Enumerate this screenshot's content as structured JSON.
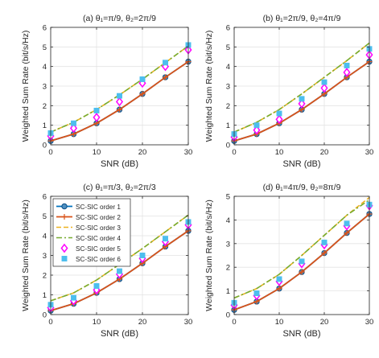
{
  "figure": {
    "legend_location": "upper-left of panel (c)",
    "legend_panel_index": 2
  },
  "series_styles": [
    {
      "name": "SC-SIC order 1",
      "color": "#0072BD",
      "line": "solid",
      "marker": "circle"
    },
    {
      "name": "SC-SIC order 2",
      "color": "#D95319",
      "line": "solid",
      "marker": "plus"
    },
    {
      "name": "SC-SIC order 3",
      "color": "#EDB120",
      "line": "dashed",
      "marker": "none"
    },
    {
      "name": "SC-SIC order 4",
      "color": "#77AC30",
      "line": "dashdot",
      "marker": "none"
    },
    {
      "name": "SC-SIC order 5",
      "color": "#FF00FF",
      "line": "none",
      "marker": "diamond"
    },
    {
      "name": "SC-SIC order 6",
      "color": "#4DBEEE",
      "line": "none",
      "marker": "square"
    }
  ],
  "chart_data": [
    {
      "type": "line",
      "title": "(a) θ₁=π/9, θ₂=2π/9",
      "xlabel": "SNR (dB)",
      "ylabel": "Weighted Sum Rate (bit/s/Hz)",
      "xlim": [
        0,
        30
      ],
      "ylim": [
        0,
        6
      ],
      "xticks": [
        0,
        10,
        20,
        30
      ],
      "yticks": [
        0,
        1,
        2,
        3,
        4,
        5,
        6
      ],
      "grid": true,
      "x": [
        0,
        5,
        10,
        15,
        20,
        25,
        30
      ],
      "series": [
        {
          "name": "SC-SIC order 1",
          "values": [
            0.2,
            0.55,
            1.1,
            1.8,
            2.6,
            3.45,
            4.25
          ]
        },
        {
          "name": "SC-SIC order 2",
          "values": [
            0.2,
            0.55,
            1.1,
            1.8,
            2.6,
            3.45,
            4.25
          ]
        },
        {
          "name": "SC-SIC order 3",
          "values": [
            0.65,
            1.15,
            1.8,
            2.55,
            3.35,
            4.2,
            5.05
          ]
        },
        {
          "name": "SC-SIC order 4",
          "values": [
            0.65,
            1.15,
            1.8,
            2.55,
            3.35,
            4.2,
            5.05
          ]
        },
        {
          "name": "SC-SIC order 5",
          "values": [
            0.45,
            0.85,
            1.4,
            2.2,
            3.15,
            4.0,
            4.85
          ]
        },
        {
          "name": "SC-SIC order 6",
          "values": [
            0.6,
            1.1,
            1.75,
            2.5,
            3.35,
            4.2,
            5.1
          ]
        }
      ]
    },
    {
      "type": "line",
      "title": "(b) θ₁=2π/9, θ₂=4π/9",
      "xlabel": "SNR (dB)",
      "ylabel": "Weighted Sum Rate (bit/s/Hz)",
      "xlim": [
        0,
        30
      ],
      "ylim": [
        0,
        6
      ],
      "xticks": [
        0,
        10,
        20,
        30
      ],
      "yticks": [
        0,
        1,
        2,
        3,
        4,
        5,
        6
      ],
      "grid": true,
      "x": [
        0,
        5,
        10,
        15,
        20,
        25,
        30
      ],
      "series": [
        {
          "name": "SC-SIC order 1",
          "values": [
            0.2,
            0.55,
            1.1,
            1.8,
            2.6,
            3.45,
            4.25
          ]
        },
        {
          "name": "SC-SIC order 2",
          "values": [
            0.2,
            0.55,
            1.1,
            1.8,
            2.6,
            3.45,
            4.25
          ]
        },
        {
          "name": "SC-SIC order 3",
          "values": [
            0.65,
            1.15,
            1.8,
            2.6,
            3.45,
            4.3,
            5.2
          ]
        },
        {
          "name": "SC-SIC order 4",
          "values": [
            0.65,
            1.15,
            1.8,
            2.6,
            3.45,
            4.3,
            5.2
          ]
        },
        {
          "name": "SC-SIC order 5",
          "values": [
            0.4,
            0.75,
            1.3,
            2.1,
            2.9,
            3.7,
            4.6
          ]
        },
        {
          "name": "SC-SIC order 6",
          "values": [
            0.55,
            1.0,
            1.6,
            2.35,
            3.2,
            4.05,
            4.9
          ]
        }
      ]
    },
    {
      "type": "line",
      "title": "(c) θ₁=π/3, θ₂=2π/3",
      "xlabel": "SNR (dB)",
      "ylabel": "Weighted Sum Rate (bit/s/Hz)",
      "xlim": [
        0,
        30
      ],
      "ylim": [
        0,
        6
      ],
      "xticks": [
        0,
        10,
        20,
        30
      ],
      "yticks": [
        0,
        1,
        2,
        3,
        4,
        5,
        6
      ],
      "grid": true,
      "x": [
        0,
        5,
        10,
        15,
        20,
        25,
        30
      ],
      "series": [
        {
          "name": "SC-SIC order 1",
          "values": [
            0.2,
            0.55,
            1.1,
            1.8,
            2.6,
            3.45,
            4.25
          ]
        },
        {
          "name": "SC-SIC order 2",
          "values": [
            0.2,
            0.55,
            1.1,
            1.8,
            2.6,
            3.45,
            4.25
          ]
        },
        {
          "name": "SC-SIC order 3",
          "values": [
            0.7,
            1.1,
            1.75,
            2.55,
            3.35,
            4.2,
            5.05
          ]
        },
        {
          "name": "SC-SIC order 4",
          "values": [
            0.7,
            1.1,
            1.75,
            2.55,
            3.35,
            4.2,
            5.05
          ]
        },
        {
          "name": "SC-SIC order 5",
          "values": [
            0.35,
            0.7,
            1.25,
            2.05,
            2.85,
            3.7,
            4.55
          ]
        },
        {
          "name": "SC-SIC order 6",
          "values": [
            0.5,
            0.85,
            1.45,
            2.2,
            3.0,
            3.85,
            4.7
          ]
        }
      ]
    },
    {
      "type": "line",
      "title": "(d) θ₁=4π/9, θ₂=8π/9",
      "xlabel": "SNR (dB)",
      "ylabel": "Weighted Sum Rate (bit/s/Hz)",
      "xlim": [
        0,
        30
      ],
      "ylim": [
        0,
        5
      ],
      "xticks": [
        0,
        10,
        20,
        30
      ],
      "yticks": [
        0,
        1,
        2,
        3,
        4,
        5
      ],
      "grid": true,
      "x": [
        0,
        5,
        10,
        15,
        20,
        25,
        30
      ],
      "series": [
        {
          "name": "SC-SIC order 1",
          "values": [
            0.2,
            0.55,
            1.1,
            1.8,
            2.6,
            3.45,
            4.25
          ]
        },
        {
          "name": "SC-SIC order 2",
          "values": [
            0.2,
            0.55,
            1.1,
            1.8,
            2.6,
            3.45,
            4.25
          ]
        },
        {
          "name": "SC-SIC order 3",
          "values": [
            0.7,
            1.1,
            1.7,
            2.5,
            3.35,
            4.2,
            4.95
          ]
        },
        {
          "name": "SC-SIC order 4",
          "values": [
            0.7,
            1.1,
            1.7,
            2.5,
            3.35,
            4.2,
            4.85
          ]
        },
        {
          "name": "SC-SIC order 5",
          "values": [
            0.4,
            0.8,
            1.4,
            2.15,
            2.95,
            3.75,
            4.6
          ]
        },
        {
          "name": "SC-SIC order 6",
          "values": [
            0.5,
            0.9,
            1.5,
            2.25,
            3.05,
            3.85,
            4.65
          ]
        }
      ]
    }
  ]
}
